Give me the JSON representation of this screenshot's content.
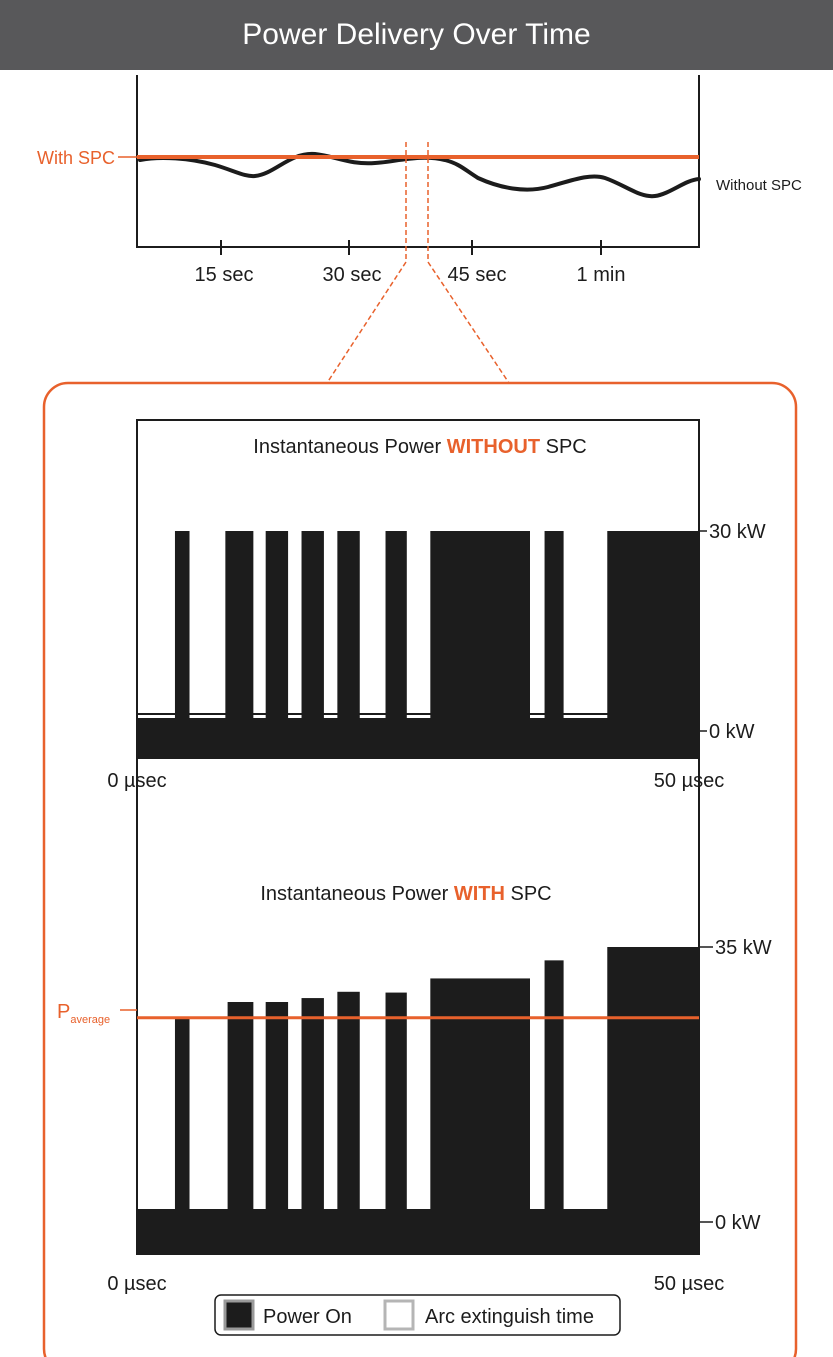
{
  "title": "Power Delivery Over Time",
  "colors": {
    "accent": "#e8612c",
    "header_bg": "#58585a",
    "ink": "#1c1c1c",
    "panel_bg": "#ffffff"
  },
  "overview": {
    "with_label": "With SPC",
    "without_label": "Without SPC",
    "ticks": [
      "15 sec",
      "30 sec",
      "45 sec",
      "1 min"
    ]
  },
  "panel_without": {
    "title_pre": "Instantaneous Power ",
    "title_em": "WITHOUT",
    "title_post": " SPC",
    "y_max_label": "30 kW",
    "y_min_label": "0 kW",
    "x_start_label": "0 µsec",
    "x_end_label": "50 µsec"
  },
  "panel_with": {
    "title_pre": "Instantaneous Power ",
    "title_em": "WITH",
    "title_post": " SPC",
    "y_max_label": "35 kW",
    "y_min_label": "0 kW",
    "x_start_label": "0 µsec",
    "x_end_label": "50 µsec",
    "avg_label": "P",
    "avg_sub": "average"
  },
  "legend": {
    "power_on": "Power On",
    "arc_extinguish": "Arc extinguish time"
  },
  "chart_data": [
    {
      "type": "line",
      "title": "",
      "x_tick_labels": [
        "15 sec",
        "30 sec",
        "45 sec",
        "1 min"
      ],
      "series": [
        {
          "name": "With SPC",
          "description": "constant level"
        },
        {
          "name": "Without SPC",
          "description": "fluctuating below the With SPC level"
        }
      ]
    },
    {
      "type": "bar",
      "title": "Instantaneous Power WITHOUT SPC",
      "unit": "kW",
      "xlim": [
        0,
        50
      ],
      "ylim": [
        0,
        30
      ],
      "baseline": 0,
      "pulses": [
        {
          "start": 3.3,
          "end": 4.6,
          "value": 30
        },
        {
          "start": 7.8,
          "end": 10.3,
          "value": 30
        },
        {
          "start": 11.4,
          "end": 13.4,
          "value": 30
        },
        {
          "start": 14.6,
          "end": 16.6,
          "value": 30
        },
        {
          "start": 17.8,
          "end": 19.8,
          "value": 30
        },
        {
          "start": 22.1,
          "end": 24.0,
          "value": 30
        },
        {
          "start": 26.1,
          "end": 35.0,
          "value": 30
        },
        {
          "start": 36.3,
          "end": 38.0,
          "value": 30
        },
        {
          "start": 41.9,
          "end": 50.0,
          "value": 30
        }
      ]
    },
    {
      "type": "bar",
      "title": "Instantaneous Power WITH SPC",
      "unit": "kW",
      "xlim": [
        0,
        50
      ],
      "ylim": [
        0,
        35
      ],
      "baseline": 0,
      "average_label": "P average",
      "average_level": 26,
      "pulses": [
        {
          "start": 3.3,
          "end": 4.6,
          "value": 26
        },
        {
          "start": 8.0,
          "end": 10.3,
          "value": 28
        },
        {
          "start": 11.4,
          "end": 13.4,
          "value": 28
        },
        {
          "start": 14.6,
          "end": 16.6,
          "value": 28.5
        },
        {
          "start": 17.8,
          "end": 19.8,
          "value": 29.3
        },
        {
          "start": 22.1,
          "end": 24.0,
          "value": 29.2
        },
        {
          "start": 26.1,
          "end": 35.0,
          "value": 31
        },
        {
          "start": 36.3,
          "end": 38.0,
          "value": 33.3
        },
        {
          "start": 41.9,
          "end": 50.0,
          "value": 35
        }
      ]
    }
  ]
}
